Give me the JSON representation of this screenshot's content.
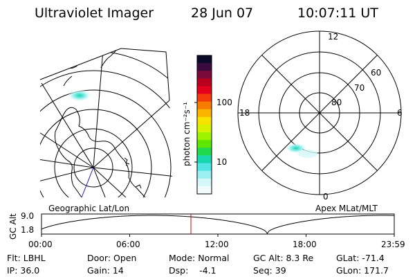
{
  "header": {
    "instrument": "Ultraviolet Imager",
    "date": "28 Jun 07",
    "time": "10:07:11 UT"
  },
  "colorbar": {
    "unit_label": "photon cm⁻²s⁻¹",
    "ticks": [
      "100",
      "10"
    ],
    "colors": [
      "#0b0a2a",
      "#3b0a3f",
      "#7a0a3a",
      "#b8001e",
      "#e2001a",
      "#f23a0a",
      "#f77d00",
      "#fbb400",
      "#f8e300",
      "#d6f200",
      "#9ff200",
      "#5ee600",
      "#21d94c",
      "#18d6b0",
      "#53e5e5",
      "#9bf0f0",
      "#d5f7f7",
      "#f2fcfc"
    ]
  },
  "geo_panel": {
    "caption": "Geographic Lat/Lon"
  },
  "polar_panel": {
    "caption": "Apex MLat/MLT",
    "mlt_labels": {
      "top": "12",
      "left": "18",
      "right": "6",
      "bottom": "0"
    },
    "lat_labels": [
      "60",
      "70",
      "80"
    ]
  },
  "altitude_plot": {
    "ylabel": "GC Alt",
    "yticks": [
      "9.0",
      "1.8"
    ],
    "xticks": [
      "00:00",
      "06:00",
      "12:00",
      "18:00",
      "23:59"
    ],
    "marker_color": "#d00000"
  },
  "footer": {
    "filter": "Flt: LBHL",
    "ip": "IP: 36.0",
    "door": "Door: Open",
    "gain": "Gain: 14",
    "mode": "Mode: Normal",
    "dsp": "Dsp:    -4.1",
    "gc_alt": "GC Alt: 8.3 Re",
    "seq": "Seq: 39",
    "glat": "GLat: -71.4",
    "glon": "GLon: 171.7"
  }
}
